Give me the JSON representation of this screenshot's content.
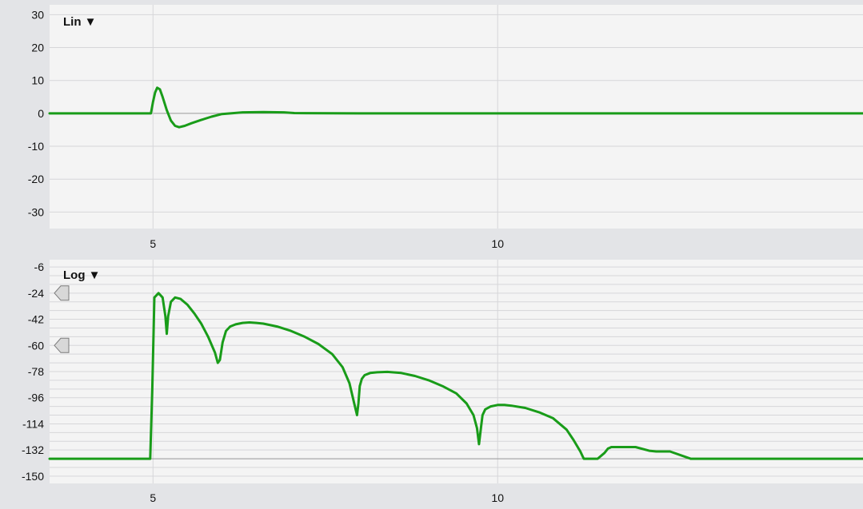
{
  "colors": {
    "background": "#e3e4e7",
    "plot_background": "#f4f4f4",
    "gridline": "#d6d6d9",
    "baseline": "#9a9a9a",
    "trace": "#199c19",
    "marker_fill": "#d8d8d8",
    "marker_stroke": "#7a7a7a"
  },
  "panels": {
    "linear": {
      "scale_menu_label": "Lin ▼",
      "x_ticks": [
        {
          "value": 5,
          "label": "5"
        },
        {
          "value": 10,
          "label": "10"
        }
      ],
      "y_ticks": [
        {
          "value": 30,
          "label": "30"
        },
        {
          "value": 20,
          "label": "20"
        },
        {
          "value": 10,
          "label": "10"
        },
        {
          "value": 0,
          "label": "0"
        },
        {
          "value": -10,
          "label": "-10"
        },
        {
          "value": -20,
          "label": "-20"
        },
        {
          "value": -30,
          "label": "-30"
        }
      ]
    },
    "log": {
      "scale_menu_label": "Log ▼",
      "x_ticks": [
        {
          "value": 5,
          "label": "5"
        },
        {
          "value": 10,
          "label": "10"
        }
      ],
      "y_ticks": [
        {
          "value": -6,
          "label": "-6"
        },
        {
          "value": -24,
          "label": "-24"
        },
        {
          "value": -42,
          "label": "-42"
        },
        {
          "value": -60,
          "label": "-60"
        },
        {
          "value": -78,
          "label": "-78"
        },
        {
          "value": -96,
          "label": "-96"
        },
        {
          "value": -114,
          "label": "-114"
        },
        {
          "value": -132,
          "label": "-132"
        },
        {
          "value": -150,
          "label": "-150"
        }
      ],
      "level_markers": [
        {
          "value": -24
        },
        {
          "value": -60
        }
      ]
    }
  },
  "chart_data": [
    {
      "type": "line",
      "scale": "linear",
      "xlim": [
        3.5,
        15.3
      ],
      "ylim": [
        -35,
        33
      ],
      "series": [
        {
          "x": [
            3.5,
            4.97,
            5.0,
            5.03,
            5.06,
            5.1,
            5.14,
            5.2,
            5.26,
            5.32,
            5.38,
            5.46,
            5.56,
            5.7,
            5.85,
            6.0,
            6.3,
            6.6,
            6.9,
            7.05,
            8.0,
            10.0,
            12.0,
            15.3
          ],
          "y": [
            0,
            0,
            3.5,
            6.3,
            7.8,
            7.3,
            5.0,
            1.0,
            -2.2,
            -3.8,
            -4.2,
            -3.8,
            -3.0,
            -2.0,
            -1.0,
            -0.2,
            0.3,
            0.4,
            0.3,
            0.1,
            0,
            0,
            0,
            0
          ]
        }
      ]
    },
    {
      "type": "line",
      "scale": "log",
      "xlim": [
        3.5,
        15.3
      ],
      "ylim": [
        -155,
        -1
      ],
      "series": [
        {
          "x": [
            3.5,
            4.96,
            4.99,
            5.02,
            5.08,
            5.14,
            5.18,
            5.2,
            5.22,
            5.26,
            5.32,
            5.4,
            5.5,
            5.6,
            5.7,
            5.8,
            5.9,
            5.94,
            5.97,
            6.01,
            6.06,
            6.12,
            6.2,
            6.3,
            6.4,
            6.5,
            6.6,
            6.8,
            7.0,
            7.2,
            7.4,
            7.6,
            7.75,
            7.85,
            7.92,
            7.96,
            7.98,
            8.0,
            8.03,
            8.07,
            8.15,
            8.25,
            8.4,
            8.6,
            8.8,
            9.0,
            9.2,
            9.4,
            9.55,
            9.65,
            9.7,
            9.73,
            9.76,
            9.78,
            9.82,
            9.9,
            10.0,
            10.1,
            10.2,
            10.4,
            10.6,
            10.8,
            11.0,
            11.1,
            11.2,
            11.25,
            11.45,
            11.55,
            11.6,
            11.65,
            11.7,
            12.0,
            12.2,
            12.3,
            12.5,
            12.8,
            15.3
          ],
          "y": [
            -138,
            -138,
            -90,
            -27,
            -24,
            -27,
            -40,
            -52,
            -40,
            -30,
            -27,
            -28,
            -32,
            -38,
            -45,
            -54,
            -65,
            -72,
            -70,
            -58,
            -50,
            -47,
            -45.5,
            -44.5,
            -44.2,
            -44.5,
            -45,
            -47,
            -50,
            -54,
            -59,
            -66,
            -75,
            -86,
            -100,
            -108,
            -100,
            -88,
            -83,
            -80.5,
            -79,
            -78.5,
            -78.2,
            -79,
            -81,
            -84,
            -88,
            -93,
            -100,
            -108,
            -117,
            -128,
            -116,
            -108,
            -104,
            -102,
            -101,
            -101,
            -101.5,
            -103,
            -106,
            -110,
            -118,
            -125,
            -133,
            -138,
            -138,
            -134,
            -131,
            -130,
            -130,
            -130,
            -132.5,
            -133,
            -133,
            -138,
            -138
          ]
        }
      ]
    }
  ]
}
